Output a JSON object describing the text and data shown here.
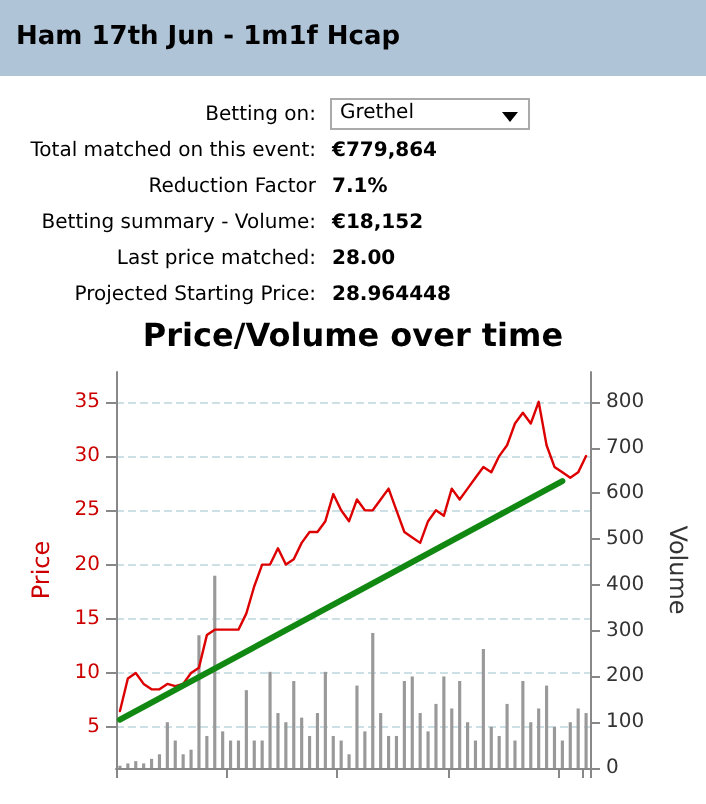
{
  "chart_data": [
    {
      "type": "other",
      "title": "Ham 17th Jun - 1m1f Hcap",
      "annotations": [
        "Betting on:",
        "Grethel",
        "Total matched on this event:",
        "€779,864",
        "Reduction Factor",
        "7.1%",
        "Betting summary - Volume:",
        "€18,152",
        "Last price matched:",
        "28.00",
        "Projected Starting Price:",
        "28.964448"
      ]
    },
    {
      "type": "line",
      "title": "Price/Volume over time",
      "ylabel": "Price",
      "y2label": "Volume",
      "categories": [
        null,
        null,
        null,
        null,
        null,
        null,
        null,
        null,
        null,
        null,
        null,
        null,
        null,
        null,
        null,
        null,
        null,
        null,
        null,
        null,
        null,
        null,
        null,
        null,
        null,
        null,
        null,
        null,
        null,
        null,
        null,
        null,
        null,
        null,
        null,
        null,
        null,
        null,
        null,
        null,
        null,
        null,
        null,
        null,
        null,
        null,
        null,
        null,
        null,
        null,
        null,
        null,
        null,
        null,
        null,
        null,
        null,
        null,
        null,
        null
      ],
      "series": [
        {
          "type": "bar",
          "axis": "y2",
          "color": "#999999",
          "values": [
            5,
            10,
            15,
            10,
            20,
            30,
            100,
            60,
            30,
            40,
            290,
            70,
            420,
            80,
            60,
            60,
            170,
            60,
            60,
            210,
            120,
            100,
            190,
            110,
            70,
            120,
            210,
            70,
            60,
            30,
            180,
            80,
            295,
            120,
            70,
            70,
            190,
            200,
            120,
            80,
            140,
            200,
            130,
            190,
            100,
            60,
            260,
            90,
            70,
            140,
            60,
            190,
            100,
            130,
            180,
            90,
            60,
            100,
            130,
            120
          ]
        },
        {
          "color": "#dd0000",
          "values": [
            6.5,
            9.5,
            10,
            9,
            8.5,
            8.5,
            9,
            8.8,
            9,
            10,
            10.5,
            13.5,
            14,
            14,
            14,
            14,
            15.5,
            18,
            20,
            20,
            21.5,
            20,
            20.5,
            22,
            23,
            23,
            24,
            26.5,
            25,
            24,
            26,
            25,
            25,
            26,
            27,
            25,
            23,
            22.5,
            22,
            24,
            25,
            24.5,
            27,
            26,
            27,
            28,
            29,
            28.5,
            30,
            31,
            33,
            34,
            33,
            35,
            31,
            29,
            28.5,
            28,
            28.5,
            30
          ]
        },
        {
          "color": "#118811",
          "values": [
            5.7,
            null,
            null,
            null,
            null,
            null,
            null,
            null,
            null,
            null,
            null,
            null,
            null,
            null,
            null,
            null,
            null,
            null,
            null,
            null,
            null,
            null,
            null,
            null,
            null,
            null,
            null,
            null,
            null,
            null,
            null,
            null,
            null,
            null,
            null,
            null,
            null,
            null,
            null,
            null,
            null,
            null,
            null,
            null,
            null,
            null,
            null,
            null,
            null,
            null,
            null,
            null,
            null,
            null,
            null,
            null,
            27.7,
            null,
            null,
            null
          ]
        }
      ],
      "ylim": [
        1.25,
        37.75
      ],
      "yticks": [
        5,
        10,
        15,
        20,
        25,
        30,
        35
      ],
      "y2lim": [
        0,
        865
      ],
      "y2ticks": [
        0,
        100,
        200,
        300,
        400,
        500,
        600,
        700,
        800
      ],
      "grid": "y",
      "marker": "none",
      "line_style": "solid"
    }
  ]
}
